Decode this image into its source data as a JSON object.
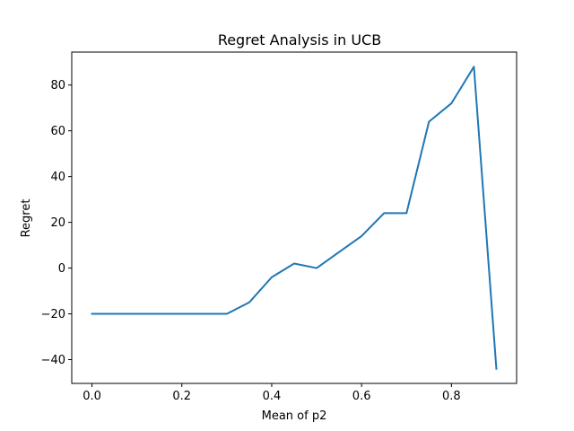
{
  "chart_data": {
    "type": "line",
    "title": "Regret Analysis in UCB",
    "xlabel": "Mean of p2",
    "ylabel": "Regret",
    "xlim": [
      -0.045,
      0.945
    ],
    "ylim": [
      -50.4,
      94.4
    ],
    "xticks": [
      0.0,
      0.2,
      0.4,
      0.6,
      0.8
    ],
    "xtick_labels": [
      "0.0",
      "0.2",
      "0.4",
      "0.6",
      "0.8"
    ],
    "yticks": [
      -40,
      -20,
      0,
      20,
      40,
      60,
      80
    ],
    "ytick_labels": [
      "−40",
      "−20",
      "0",
      "20",
      "40",
      "60",
      "80"
    ],
    "grid": false,
    "series": [
      {
        "color": "#1f77b4",
        "x": [
          0.0,
          0.05,
          0.1,
          0.15,
          0.2,
          0.25,
          0.3,
          0.35,
          0.4,
          0.45,
          0.5,
          0.55,
          0.6,
          0.65,
          0.7,
          0.75,
          0.8,
          0.85,
          0.9
        ],
        "y": [
          -20,
          -20,
          -20,
          -20,
          -20,
          -20,
          -20,
          -15,
          -4,
          2,
          0,
          7,
          14,
          24,
          24,
          64,
          72,
          88,
          -44
        ]
      }
    ]
  }
}
